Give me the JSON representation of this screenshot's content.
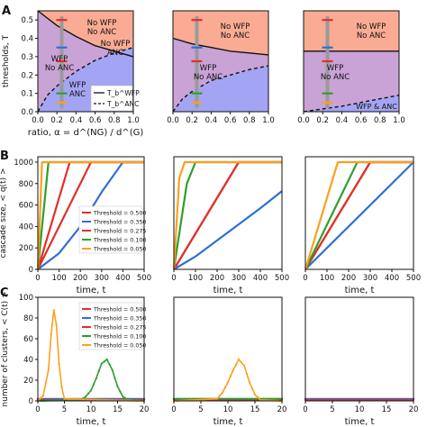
{
  "panel_letters": [
    "A",
    "B",
    "C"
  ],
  "chart_data": [
    {
      "panel": "A",
      "subplot": 1,
      "type": "area",
      "xlim": [
        0,
        1
      ],
      "ylim": [
        0,
        0.55
      ],
      "xticks": [
        "0.0",
        "0.2",
        "0.4",
        "0.6",
        "0.8",
        "1.0"
      ],
      "yticks": [
        "0.0",
        "0.1",
        "0.2",
        "0.3",
        "0.4",
        "0.5"
      ],
      "xlabel": "ratio,  α = d^(NG) / d^(G)",
      "ylabel": "thresholds, T",
      "solid_curve": {
        "x": [
          0,
          0.2,
          0.4,
          0.6,
          0.8,
          1.0
        ],
        "y": [
          0.55,
          0.47,
          0.41,
          0.36,
          0.33,
          0.3
        ]
      },
      "dashed_curve": {
        "x": [
          0,
          0.1,
          0.2,
          0.3,
          0.4,
          0.5,
          0.6,
          0.8,
          1.0
        ],
        "y": [
          0,
          0.09,
          0.14,
          0.18,
          0.22,
          0.25,
          0.28,
          0.32,
          0.35
        ]
      },
      "region_labels": [
        "No WFP\nNo ANC",
        "No WFP\nANC",
        "WFP\nNo ANC",
        "WFP\nANC"
      ],
      "legend": [
        "T_b^WFP",
        "T_b^ANC"
      ],
      "markers": {
        "x": 0.25,
        "thresholds": [
          0.5,
          0.35,
          0.275,
          0.1,
          0.05
        ],
        "colors": [
          "#e0302a",
          "#2d6fd6",
          "#e0302a",
          "#2ca02c",
          "#ff9f1c"
        ]
      }
    },
    {
      "panel": "A",
      "subplot": 2,
      "type": "area",
      "xlim": [
        0,
        1
      ],
      "ylim": [
        0,
        0.55
      ],
      "xticks": [
        "0.0",
        "0.2",
        "0.4",
        "0.6",
        "0.8",
        "1.0"
      ],
      "solid_curve": {
        "x": [
          0,
          0.2,
          0.4,
          0.6,
          0.8,
          1.0
        ],
        "y": [
          0.4,
          0.37,
          0.35,
          0.33,
          0.32,
          0.31
        ]
      },
      "dashed_curve": {
        "x": [
          0,
          0.1,
          0.2,
          0.3,
          0.4,
          0.6,
          0.8,
          1.0
        ],
        "y": [
          0,
          0.07,
          0.11,
          0.14,
          0.17,
          0.2,
          0.23,
          0.25
        ]
      },
      "region_labels": [
        "No WFP\nNo ANC",
        "WFP\nNo ANC"
      ],
      "markers": {
        "x": 0.25,
        "thresholds": [
          0.5,
          0.35,
          0.275,
          0.1,
          0.05
        ],
        "colors": [
          "#e0302a",
          "#2d6fd6",
          "#e0302a",
          "#2ca02c",
          "#ff9f1c"
        ]
      }
    },
    {
      "panel": "A",
      "subplot": 3,
      "type": "area",
      "xlim": [
        0,
        1
      ],
      "ylim": [
        0,
        0.55
      ],
      "xticks": [
        "0.0",
        "0.2",
        "0.4",
        "0.6",
        "0.8",
        "1.0"
      ],
      "solid_curve": {
        "x": [
          0,
          0.2,
          0.4,
          0.6,
          0.8,
          1.0
        ],
        "y": [
          0.33,
          0.33,
          0.33,
          0.33,
          0.33,
          0.33
        ]
      },
      "dashed_curve": {
        "x": [
          0,
          0.2,
          0.4,
          0.6,
          0.8,
          1.0
        ],
        "y": [
          0,
          0.015,
          0.03,
          0.05,
          0.07,
          0.09
        ]
      },
      "region_labels": [
        "No WFP\nNo ANC",
        "WFP\nNo ANC",
        "WFP & ANC"
      ],
      "markers": {
        "x": 0.25,
        "thresholds": [
          0.5,
          0.35,
          0.275,
          0.1,
          0.05
        ],
        "colors": [
          "#e0302a",
          "#2d6fd6",
          "#e0302a",
          "#2ca02c",
          "#ff9f1c"
        ]
      }
    },
    {
      "panel": "B",
      "subplot": 1,
      "type": "line",
      "xlim": [
        0,
        500
      ],
      "ylim": [
        0,
        1050
      ],
      "xticks": [
        "0",
        "100",
        "200",
        "300",
        "400",
        "500"
      ],
      "yticks": [
        "0",
        "200",
        "400",
        "600",
        "800",
        "1000"
      ],
      "xlabel": "time, t",
      "ylabel": "cascade size, < q(t) >",
      "series": [
        {
          "name": "Threshold = 0.500",
          "color": "#e0302a",
          "x": [
            0,
            250,
            500
          ],
          "y": [
            0,
            1000,
            1000
          ]
        },
        {
          "name": "Threshold = 0.350",
          "color": "#2d6fd6",
          "x": [
            0,
            100,
            200,
            300,
            400,
            500
          ],
          "y": [
            0,
            150,
            400,
            720,
            1000,
            1000
          ]
        },
        {
          "name": "Threshold = 0.275",
          "color": "#e0302a",
          "x": [
            0,
            150,
            500
          ],
          "y": [
            0,
            1000,
            1000
          ]
        },
        {
          "name": "Threshold = 0.100",
          "color": "#2ca02c",
          "x": [
            0,
            50,
            500
          ],
          "y": [
            0,
            1000,
            1000
          ]
        },
        {
          "name": "Threshold = 0.050",
          "color": "#ff9f1c",
          "x": [
            0,
            20,
            500
          ],
          "y": [
            0,
            1000,
            1000
          ]
        }
      ]
    },
    {
      "panel": "B",
      "subplot": 2,
      "type": "line",
      "xlim": [
        0,
        500
      ],
      "ylim": [
        0,
        1050
      ],
      "xticks": [
        "0",
        "100",
        "200",
        "300",
        "400",
        "500"
      ],
      "xlabel": "time, t",
      "series": [
        {
          "color": "#e0302a",
          "x": [
            0,
            300,
            500
          ],
          "y": [
            0,
            1000,
            1000
          ]
        },
        {
          "color": "#2d6fd6",
          "x": [
            0,
            100,
            200,
            300,
            400,
            500
          ],
          "y": [
            0,
            120,
            270,
            420,
            570,
            730
          ]
        },
        {
          "color": "#e0302a",
          "x": [
            0,
            300,
            500
          ],
          "y": [
            0,
            1000,
            1000
          ]
        },
        {
          "color": "#2ca02c",
          "x": [
            0,
            60,
            100,
            500
          ],
          "y": [
            0,
            800,
            1000,
            1000
          ]
        },
        {
          "color": "#ff9f1c",
          "x": [
            0,
            25,
            50,
            500
          ],
          "y": [
            0,
            850,
            1000,
            1000
          ]
        }
      ]
    },
    {
      "panel": "B",
      "subplot": 3,
      "type": "line",
      "xlim": [
        0,
        500
      ],
      "ylim": [
        0,
        1050
      ],
      "xticks": [
        "0",
        "100",
        "200",
        "300",
        "400",
        "500"
      ],
      "xlabel": "time, t",
      "series": [
        {
          "color": "#e0302a",
          "x": [
            0,
            300,
            500
          ],
          "y": [
            0,
            1000,
            1000
          ]
        },
        {
          "color": "#2d6fd6",
          "x": [
            0,
            500
          ],
          "y": [
            0,
            1000
          ]
        },
        {
          "color": "#e0302a",
          "x": [
            0,
            300,
            500
          ],
          "y": [
            0,
            1000,
            1000
          ]
        },
        {
          "color": "#2ca02c",
          "x": [
            0,
            240,
            500
          ],
          "y": [
            0,
            1000,
            1000
          ]
        },
        {
          "color": "#ff9f1c",
          "x": [
            0,
            150,
            500
          ],
          "y": [
            0,
            1000,
            1000
          ]
        }
      ]
    },
    {
      "panel": "C",
      "subplot": 1,
      "type": "line",
      "xlim": [
        0,
        20
      ],
      "ylim": [
        0,
        100
      ],
      "xticks": [
        "0",
        "5",
        "10",
        "15",
        "20"
      ],
      "yticks": [
        "0",
        "20",
        "40",
        "60",
        "80",
        "100"
      ],
      "xlabel": "time, t",
      "ylabel": "number of clusters, < C(t) >",
      "series": [
        {
          "name": "Threshold = 0.500",
          "color": "#e0302a",
          "x": [
            0,
            20
          ],
          "y": [
            1,
            1
          ]
        },
        {
          "name": "Threshold = 0.350",
          "color": "#2d6fd6",
          "x": [
            0,
            20
          ],
          "y": [
            2,
            2
          ]
        },
        {
          "name": "Threshold = 0.275",
          "color": "#e0302a",
          "x": [
            0,
            20
          ],
          "y": [
            1,
            1
          ]
        },
        {
          "name": "Threshold = 0.100",
          "color": "#2ca02c",
          "x": [
            0,
            8,
            9,
            10,
            11,
            12,
            13,
            14,
            15,
            16,
            17,
            20
          ],
          "y": [
            0,
            1,
            4,
            10,
            22,
            36,
            40,
            30,
            14,
            4,
            1,
            0
          ]
        },
        {
          "name": "Threshold = 0.050",
          "color": "#ff9f1c",
          "x": [
            0,
            1,
            2,
            2.7,
            3.2,
            3.7,
            4.2,
            5,
            20
          ],
          "y": [
            0,
            5,
            30,
            78,
            94,
            60,
            20,
            2,
            0
          ]
        }
      ]
    },
    {
      "panel": "C",
      "subplot": 2,
      "type": "line",
      "xlim": [
        0,
        20
      ],
      "ylim": [
        0,
        100
      ],
      "xticks": [
        "0",
        "5",
        "10",
        "15",
        "20"
      ],
      "xlabel": "time, t",
      "series": [
        {
          "color": "#e0302a",
          "x": [
            0,
            20
          ],
          "y": [
            1,
            1
          ]
        },
        {
          "color": "#2d6fd6",
          "x": [
            0,
            20
          ],
          "y": [
            2,
            2
          ]
        },
        {
          "color": "#2ca02c",
          "x": [
            0,
            20
          ],
          "y": [
            2,
            2
          ]
        },
        {
          "color": "#ff9f1c",
          "x": [
            0,
            8,
            9,
            10,
            11,
            12,
            13,
            14,
            15,
            16,
            20
          ],
          "y": [
            0,
            2,
            8,
            18,
            30,
            40,
            34,
            18,
            6,
            1,
            0
          ]
        }
      ]
    },
    {
      "panel": "C",
      "subplot": 3,
      "type": "line",
      "xlim": [
        0,
        20
      ],
      "ylim": [
        0,
        100
      ],
      "xticks": [
        "0",
        "5",
        "10",
        "15",
        "20"
      ],
      "xlabel": "time, t",
      "series": [
        {
          "color": "#2d6fd6",
          "x": [
            0,
            20
          ],
          "y": [
            2,
            2
          ]
        },
        {
          "color": "#e0302a",
          "x": [
            0,
            20
          ],
          "y": [
            1,
            1
          ]
        }
      ]
    }
  ]
}
